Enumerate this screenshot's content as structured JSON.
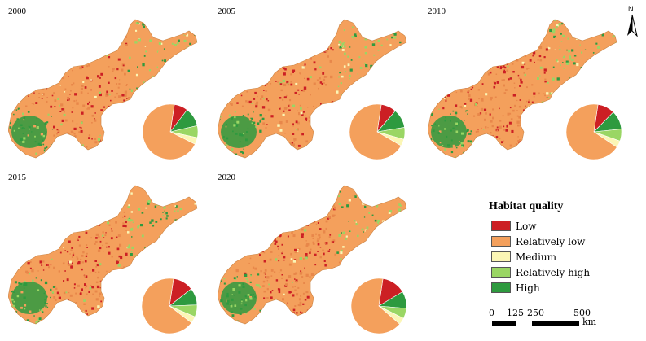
{
  "colors": {
    "low": "#cc1f24",
    "relatively_low": "#f4a05c",
    "medium": "#fbf6b5",
    "relatively_high": "#9ad664",
    "high": "#2e9a3f"
  },
  "panels": [
    {
      "year": "2000",
      "shares": [
        0.08,
        0.7,
        0.04,
        0.07,
        0.11
      ]
    },
    {
      "year": "2005",
      "shares": [
        0.09,
        0.69,
        0.04,
        0.07,
        0.11
      ]
    },
    {
      "year": "2010",
      "shares": [
        0.1,
        0.68,
        0.04,
        0.07,
        0.11
      ]
    },
    {
      "year": "2015",
      "shares": [
        0.12,
        0.67,
        0.04,
        0.07,
        0.1
      ]
    },
    {
      "year": "2020",
      "shares": [
        0.14,
        0.66,
        0.04,
        0.06,
        0.1
      ]
    }
  ],
  "legend": {
    "title": "Habitat quality",
    "items": [
      {
        "label": "Low",
        "color": "#cc1f24"
      },
      {
        "label": "Relatively low",
        "color": "#f4a05c"
      },
      {
        "label": "Medium",
        "color": "#fbf6b5"
      },
      {
        "label": "Relatively high",
        "color": "#9ad664"
      },
      {
        "label": "High",
        "color": "#2e9a3f"
      }
    ]
  },
  "north_arrow": {
    "label": "N"
  },
  "scale_bar": {
    "ticks": [
      "0",
      "125",
      "250",
      "500"
    ],
    "unit": "km"
  }
}
